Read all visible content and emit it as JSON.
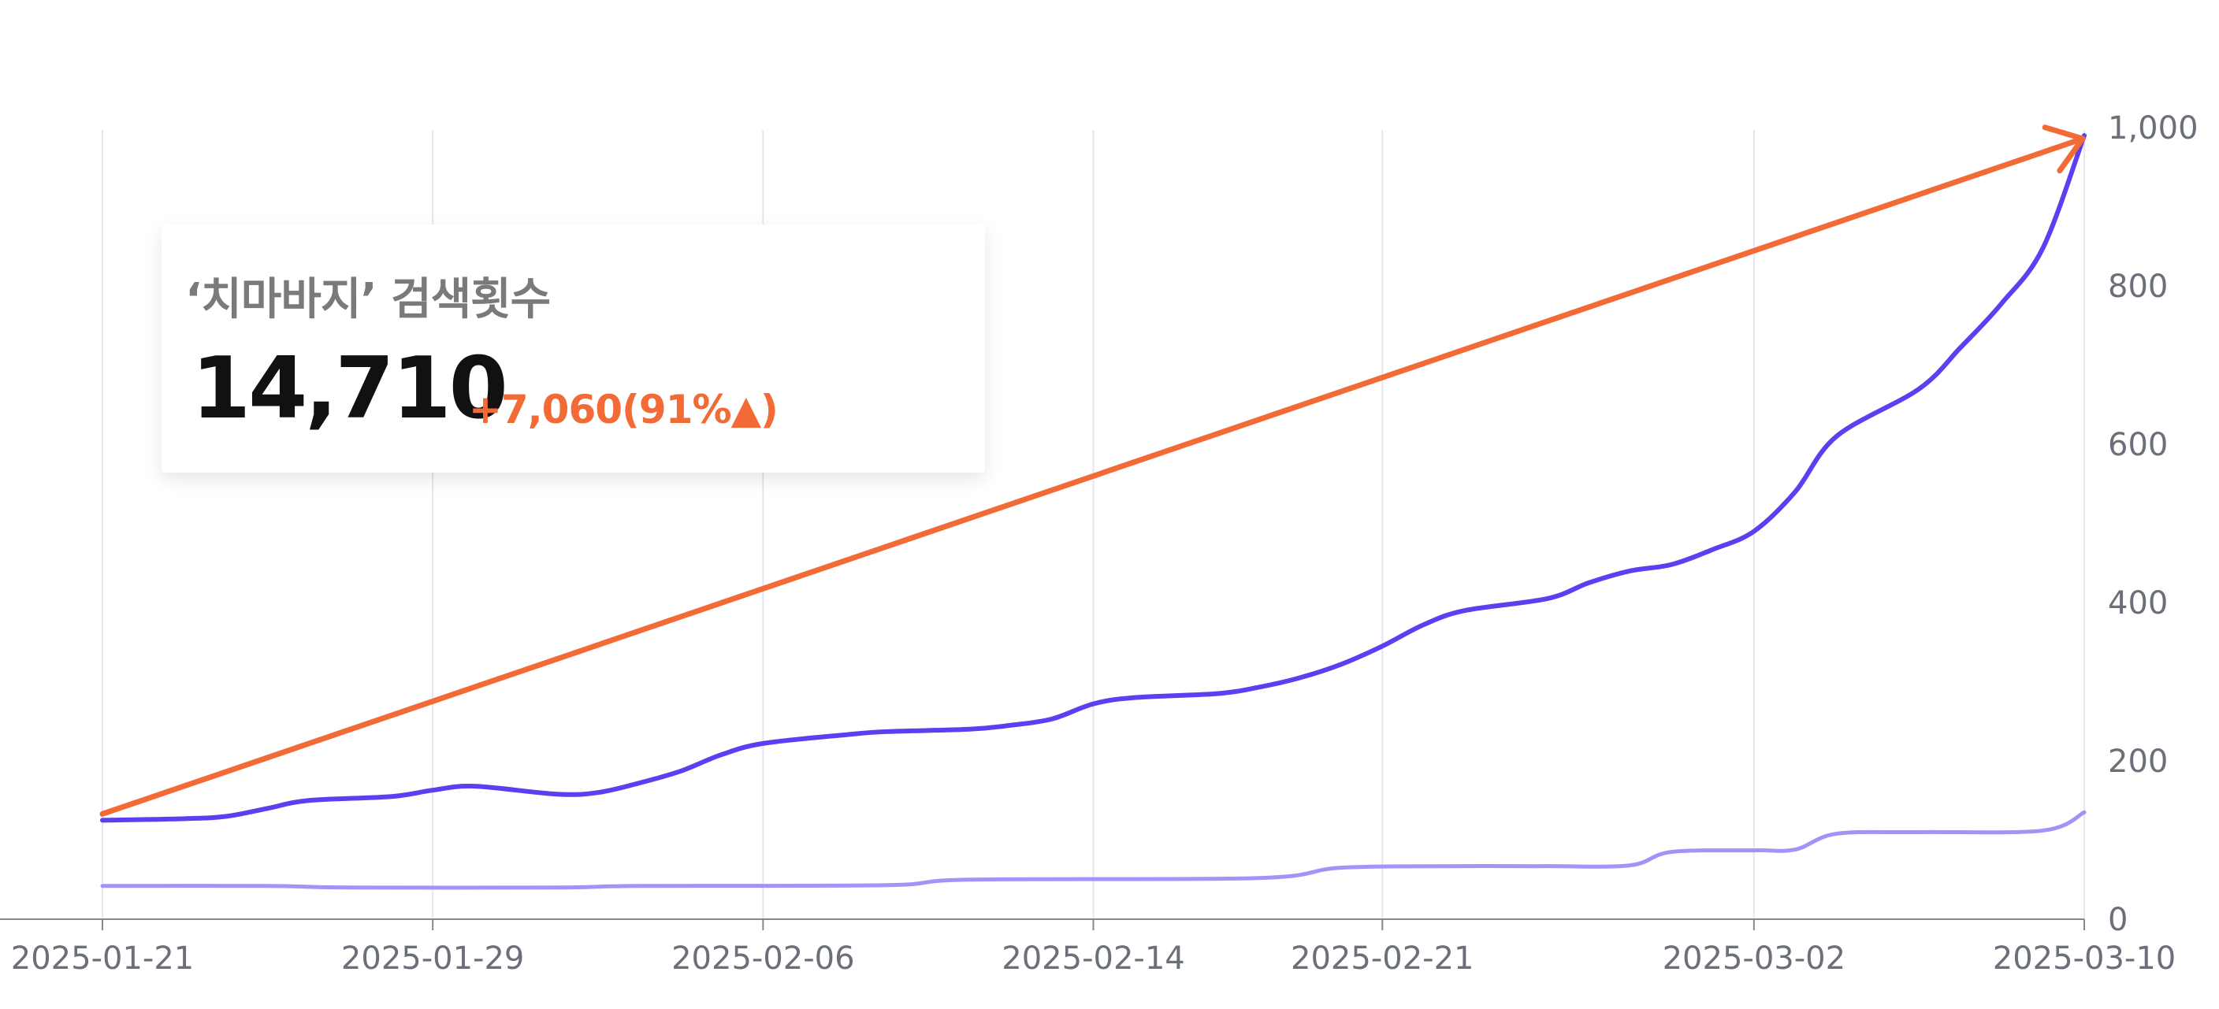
{
  "card": {
    "title": "‘치마바지’ 검색횟수",
    "total": "14,710",
    "change": "+7,060(91%▲)"
  },
  "colors": {
    "primary_series": "#5b3ff0",
    "secondary_series": "#a493f7",
    "trend_arrow": "#f26b36",
    "gridline": "#e3e6f3",
    "axis": "#888888",
    "tick_text": "#6b6f7a"
  },
  "chart_data": {
    "type": "line",
    "title": "",
    "xlabel": "",
    "ylabel": "",
    "x_ticks": [
      "2025-01-21",
      "2025-01-29",
      "2025-02-06",
      "2025-02-14",
      "2025-02-21",
      "2025-03-02",
      "2025-03-10"
    ],
    "x_range": [
      "2025-01-21",
      "2025-03-10"
    ],
    "y_ticks": [
      "0",
      "200",
      "400",
      "600",
      "800",
      "1,000"
    ],
    "ylim": [
      0,
      1000
    ],
    "y_axis_position": "right",
    "grid": "vertical",
    "legend": "none",
    "series": [
      {
        "role": "primary",
        "points": [
          [
            "2025-01-21",
            125
          ],
          [
            "2025-01-23",
            127
          ],
          [
            "2025-01-24",
            130
          ],
          [
            "2025-01-25",
            140
          ],
          [
            "2025-01-26",
            150
          ],
          [
            "2025-01-28",
            155
          ],
          [
            "2025-01-29",
            163
          ],
          [
            "2025-01-30",
            168
          ],
          [
            "2025-02-01",
            158
          ],
          [
            "2025-02-02",
            160
          ],
          [
            "2025-02-03",
            172
          ],
          [
            "2025-02-04",
            187
          ],
          [
            "2025-02-05",
            208
          ],
          [
            "2025-02-06",
            222
          ],
          [
            "2025-02-08",
            233
          ],
          [
            "2025-02-09",
            237
          ],
          [
            "2025-02-11",
            240
          ],
          [
            "2025-02-12",
            245
          ],
          [
            "2025-02-13",
            253
          ],
          [
            "2025-02-14",
            272
          ],
          [
            "2025-02-15",
            280
          ],
          [
            "2025-02-17",
            285
          ],
          [
            "2025-02-18",
            293
          ],
          [
            "2025-02-19",
            305
          ],
          [
            "2025-02-20",
            322
          ],
          [
            "2025-02-21",
            345
          ],
          [
            "2025-02-22",
            372
          ],
          [
            "2025-02-23",
            390
          ],
          [
            "2025-02-25",
            405
          ],
          [
            "2025-02-26",
            425
          ],
          [
            "2025-02-27",
            440
          ],
          [
            "2025-02-28",
            448
          ],
          [
            "2025-03-01",
            467
          ],
          [
            "2025-03-02",
            490
          ],
          [
            "2025-03-03",
            540
          ],
          [
            "2025-03-04",
            610
          ],
          [
            "2025-03-06",
            670
          ],
          [
            "2025-03-07",
            722
          ],
          [
            "2025-03-08",
            778
          ],
          [
            "2025-03-09",
            848
          ],
          [
            "2025-03-10",
            990
          ]
        ]
      },
      {
        "role": "secondary",
        "points": [
          [
            "2025-01-21",
            42
          ],
          [
            "2025-01-25",
            42
          ],
          [
            "2025-01-27",
            40
          ],
          [
            "2025-02-01",
            40
          ],
          [
            "2025-02-03",
            42
          ],
          [
            "2025-02-09",
            43
          ],
          [
            "2025-02-11",
            50
          ],
          [
            "2025-02-18",
            52
          ],
          [
            "2025-02-20",
            65
          ],
          [
            "2025-02-23",
            67
          ],
          [
            "2025-02-25",
            67
          ],
          [
            "2025-02-27",
            68
          ],
          [
            "2025-02-28",
            85
          ],
          [
            "2025-03-02",
            87
          ],
          [
            "2025-03-03",
            88
          ],
          [
            "2025-03-04",
            108
          ],
          [
            "2025-03-06",
            110
          ],
          [
            "2025-03-09",
            112
          ],
          [
            "2025-03-10",
            135
          ]
        ]
      }
    ],
    "trend_arrow": {
      "from": [
        "2025-01-21",
        133
      ],
      "to": [
        "2025-03-10",
        990
      ]
    }
  }
}
